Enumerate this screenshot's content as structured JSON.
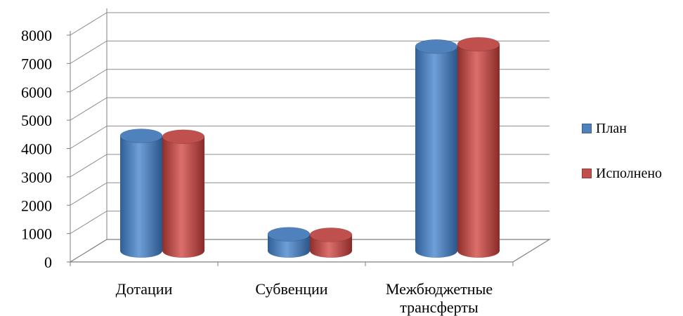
{
  "chart_data": {
    "type": "bar",
    "title": "",
    "xlabel": "",
    "ylabel": "",
    "categories": [
      "Дотации",
      "Субвенции",
      "Межбюджетные трансферты"
    ],
    "series": [
      {
        "name": "План",
        "values": [
          4050,
          580,
          7200
        ],
        "color": "#4F81BD"
      },
      {
        "name": "Исполнено",
        "values": [
          4020,
          560,
          7280
        ],
        "color": "#C0504D"
      }
    ],
    "ylim": [
      0,
      8000
    ],
    "yticks": [
      0,
      1000,
      2000,
      3000,
      4000,
      5000,
      6000,
      7000,
      8000
    ],
    "grid": true,
    "legend_position": "right",
    "style": "3d-cylinder"
  }
}
